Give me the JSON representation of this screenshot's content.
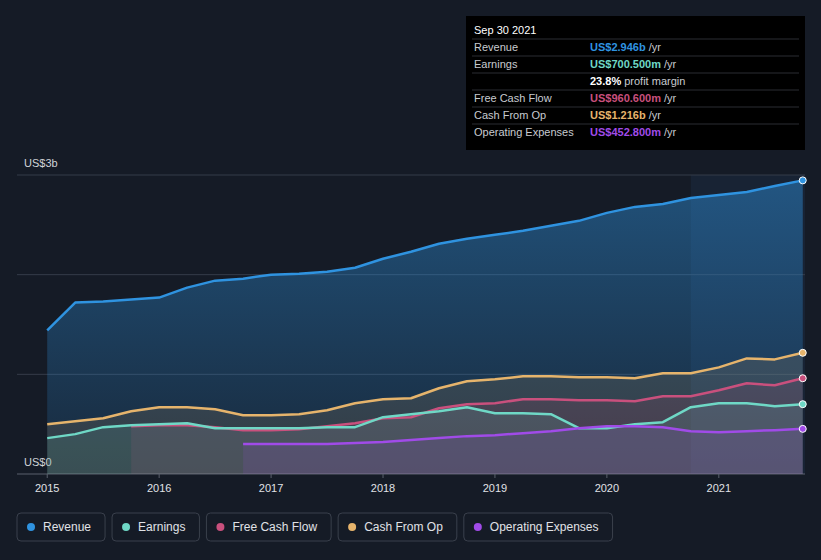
{
  "chart_data": {
    "type": "area",
    "x": [
      2015,
      2015.25,
      2015.5,
      2015.75,
      2016,
      2016.25,
      2016.5,
      2016.75,
      2017,
      2017.25,
      2017.5,
      2017.75,
      2018,
      2018.25,
      2018.5,
      2018.75,
      2019,
      2019.25,
      2019.5,
      2019.75,
      2020,
      2020.25,
      2020.5,
      2020.75,
      2021,
      2021.25,
      2021.5,
      2021.75
    ],
    "xlim": [
      2014.73,
      2021.77
    ],
    "xticks": [
      2015,
      2016,
      2017,
      2018,
      2019,
      2020,
      2021
    ],
    "ylim": [
      0,
      3
    ],
    "yticks": [
      {
        "value": 0,
        "label": "US$0"
      },
      {
        "value": 1,
        "label": null
      },
      {
        "value": 2,
        "label": null
      },
      {
        "value": 3,
        "label": "US$3b"
      }
    ],
    "grid": true,
    "legend": "bottom-left",
    "series": [
      {
        "name": "Revenue",
        "color": "#2f93e0",
        "values": [
          1.44,
          1.72,
          1.73,
          1.75,
          1.77,
          1.87,
          1.94,
          1.96,
          2.0,
          2.01,
          2.03,
          2.07,
          2.16,
          2.23,
          2.31,
          2.36,
          2.4,
          2.44,
          2.49,
          2.54,
          2.62,
          2.68,
          2.71,
          2.77,
          2.8,
          2.83,
          2.89,
          2.946
        ]
      },
      {
        "name": "Earnings",
        "color": "#6fd8c6",
        "values": [
          0.36,
          0.4,
          0.47,
          0.49,
          0.5,
          0.51,
          0.46,
          0.46,
          0.46,
          0.46,
          0.47,
          0.47,
          0.57,
          0.6,
          0.63,
          0.67,
          0.61,
          0.61,
          0.6,
          0.46,
          0.46,
          0.5,
          0.52,
          0.67,
          0.71,
          0.71,
          0.68,
          0.7005
        ]
      },
      {
        "name": "Free Cash Flow",
        "color": "#c9507d",
        "values": [
          null,
          null,
          null,
          0.48,
          0.49,
          0.49,
          0.47,
          0.44,
          0.44,
          0.45,
          0.48,
          0.51,
          0.56,
          0.57,
          0.66,
          0.7,
          0.71,
          0.75,
          0.75,
          0.74,
          0.74,
          0.73,
          0.78,
          0.78,
          0.84,
          0.91,
          0.89,
          0.9606
        ]
      },
      {
        "name": "Cash From Op",
        "color": "#e6b46c",
        "values": [
          0.5,
          0.53,
          0.56,
          0.63,
          0.67,
          0.67,
          0.65,
          0.59,
          0.59,
          0.6,
          0.64,
          0.71,
          0.75,
          0.76,
          0.86,
          0.93,
          0.95,
          0.98,
          0.98,
          0.97,
          0.97,
          0.96,
          1.01,
          1.01,
          1.07,
          1.16,
          1.15,
          1.216
        ]
      },
      {
        "name": "Operating Expenses",
        "color": "#a04be8",
        "values": [
          null,
          null,
          null,
          null,
          null,
          null,
          null,
          0.3,
          0.3,
          0.3,
          0.3,
          0.31,
          0.32,
          0.34,
          0.36,
          0.38,
          0.39,
          0.41,
          0.43,
          0.46,
          0.48,
          0.48,
          0.47,
          0.43,
          0.42,
          0.43,
          0.44,
          0.4528
        ]
      }
    ],
    "tooltip": {
      "title": "Sep 30 2021",
      "rows": [
        {
          "label": "Revenue",
          "value": "US$2.946b",
          "unit": "/yr",
          "color": "#2f93e0"
        },
        {
          "label": "Earnings",
          "value": "US$700.500m",
          "unit": "/yr",
          "color": "#6fd8c6"
        },
        {
          "value": "23.8%",
          "unit": "profit margin",
          "color": "#ffffff"
        },
        {
          "label": "Free Cash Flow",
          "value": "US$960.600m",
          "unit": "/yr",
          "color": "#c9507d"
        },
        {
          "label": "Cash From Op",
          "value": "US$1.216b",
          "unit": "/yr",
          "color": "#e6b46c"
        },
        {
          "label": "Operating Expenses",
          "value": "US$452.800m",
          "unit": "/yr",
          "color": "#a04be8"
        }
      ]
    }
  }
}
